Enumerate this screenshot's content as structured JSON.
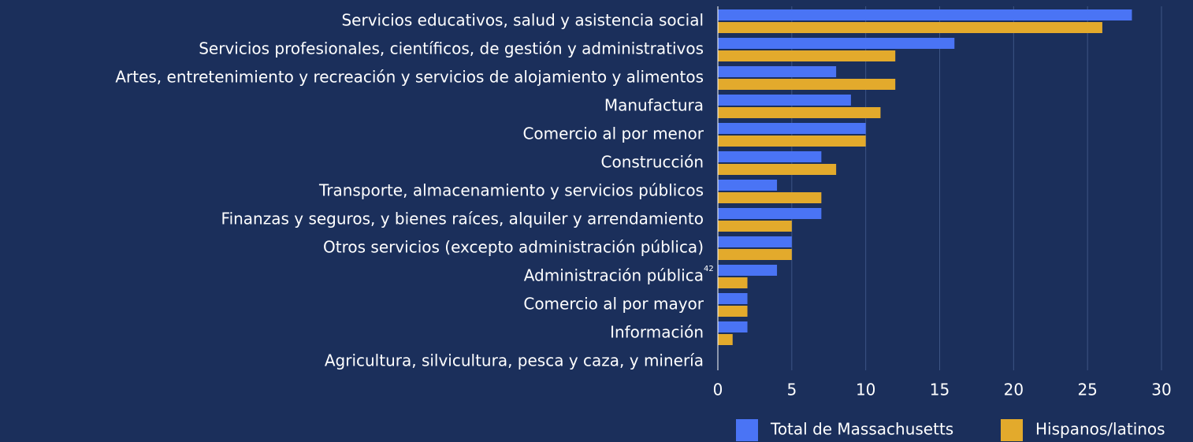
{
  "chart_data": {
    "type": "barh",
    "categories": [
      "Servicios educativos, salud y asistencia social",
      "Servicios profesionales, científicos, de gestión y administrativos",
      "Artes, entretenimiento y recreación y servicios de alojamiento y alimentos",
      "Manufactura",
      "Comercio al por menor",
      "Construcción",
      "Transporte, almacenamiento y servicios públicos",
      "Finanzas y seguros, y bienes raíces, alquiler y arrendamiento",
      "Otros servicios (excepto administración pública)",
      "Administración pública",
      "Comercio al por mayor",
      "Información",
      "Agricultura, silvicultura, pesca y caza, y minería"
    ],
    "series": [
      {
        "name": "Total de Massachusetts",
        "color": "#4a74f5",
        "values": [
          28,
          16,
          8,
          9,
          10,
          7,
          4,
          7,
          5,
          4,
          2,
          2,
          0
        ]
      },
      {
        "name": "Hispanos/latinos",
        "color": "#e3aa2c",
        "values": [
          26,
          12,
          12,
          11,
          10,
          8,
          7,
          5,
          5,
          2,
          2,
          1,
          0
        ]
      }
    ],
    "annotations": [
      "42"
    ],
    "xlim": [
      0,
      30
    ],
    "xticks": [
      0,
      5,
      10,
      15,
      20,
      25,
      30
    ],
    "grid": true,
    "legend": "bottom-right"
  }
}
